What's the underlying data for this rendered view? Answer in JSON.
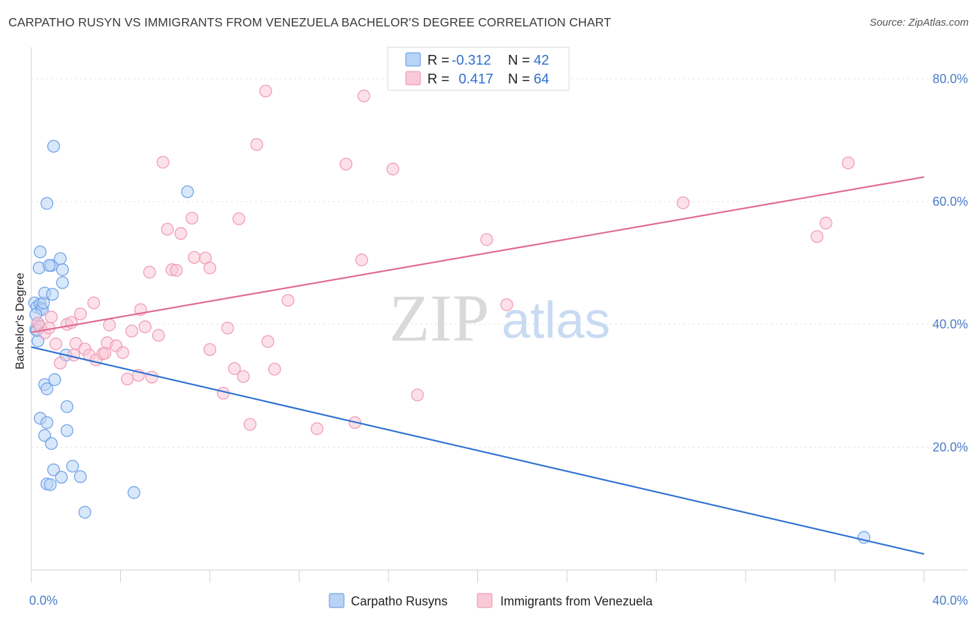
{
  "title": "CARPATHO RUSYN VS IMMIGRANTS FROM VENEZUELA BACHELOR'S DEGREE CORRELATION CHART",
  "source": "Source: ZipAtlas.com",
  "watermark": {
    "zip": "ZIP",
    "atlas": "atlas"
  },
  "chart_data": {
    "type": "scatter",
    "title": "CARPATHO RUSYN VS IMMIGRANTS FROM VENEZUELA BACHELOR'S DEGREE CORRELATION CHART",
    "xlabel": "",
    "ylabel": "Bachelor's Degree",
    "xlim": [
      0,
      40
    ],
    "ylim": [
      0,
      84
    ],
    "x_tick_labels": [
      {
        "value": 0,
        "label": "0.0%"
      },
      {
        "value": 40,
        "label": "40.0%"
      }
    ],
    "y_tick_labels": [
      {
        "value": 20,
        "label": "20.0%"
      },
      {
        "value": 40,
        "label": "40.0%"
      },
      {
        "value": 60,
        "label": "60.0%"
      },
      {
        "value": 80,
        "label": "80.0%"
      }
    ],
    "grid": true,
    "legend_position": "top-center",
    "series": [
      {
        "name": "Carpatho Rusyns",
        "color": "#6fa3e8",
        "fill": "#b9d3f5",
        "line_color": "#2e72d2",
        "r_label": "R =",
        "r_value": "-0.312",
        "n_label": "N =",
        "n_value": "42",
        "trend": {
          "x0": 0,
          "y0": 36.3,
          "x1": 40,
          "y1": 2.6
        },
        "points": [
          [
            0.15,
            43.5
          ],
          [
            0.25,
            42.8
          ],
          [
            0.2,
            39.2
          ],
          [
            0.3,
            40.2
          ],
          [
            0.3,
            37.3
          ],
          [
            0.35,
            49.2
          ],
          [
            0.4,
            51.8
          ],
          [
            0.4,
            43.3
          ],
          [
            0.45,
            42.6
          ],
          [
            0.5,
            42.4
          ],
          [
            0.55,
            43.5
          ],
          [
            0.6,
            45.1
          ],
          [
            0.7,
            59.7
          ],
          [
            0.9,
            49.6
          ],
          [
            0.95,
            44.9
          ],
          [
            1.0,
            69.0
          ],
          [
            1.3,
            50.7
          ],
          [
            1.4,
            48.9
          ],
          [
            1.4,
            46.8
          ],
          [
            0.2,
            41.6
          ],
          [
            0.25,
            39.0
          ],
          [
            0.6,
            30.2
          ],
          [
            0.7,
            29.5
          ],
          [
            1.05,
            31.0
          ],
          [
            1.55,
            35.0
          ],
          [
            1.6,
            26.6
          ],
          [
            0.4,
            24.7
          ],
          [
            0.7,
            24.0
          ],
          [
            1.6,
            22.7
          ],
          [
            0.6,
            21.9
          ],
          [
            0.9,
            20.6
          ],
          [
            1.0,
            16.3
          ],
          [
            1.85,
            16.9
          ],
          [
            1.35,
            15.1
          ],
          [
            2.2,
            15.2
          ],
          [
            0.7,
            14.0
          ],
          [
            0.85,
            13.9
          ],
          [
            4.6,
            12.6
          ],
          [
            2.4,
            9.4
          ],
          [
            7.0,
            61.6
          ],
          [
            37.3,
            5.3
          ],
          [
            0.8,
            49.6
          ]
        ]
      },
      {
        "name": "Immigrants from Venezuela",
        "color": "#f09cb6",
        "fill": "#f9c9d7",
        "line_color": "#e0698f",
        "r_label": "R =",
        "r_value": "0.417",
        "n_label": "N =",
        "n_value": "64",
        "trend": {
          "x0": 0,
          "y0": 38.7,
          "x1": 40,
          "y1": 64.0
        },
        "points": [
          [
            0.3,
            40.2
          ],
          [
            0.4,
            39.6
          ],
          [
            0.6,
            38.6
          ],
          [
            0.8,
            39.4
          ],
          [
            0.9,
            41.2
          ],
          [
            1.1,
            36.8
          ],
          [
            1.3,
            33.7
          ],
          [
            1.6,
            40.0
          ],
          [
            1.8,
            40.3
          ],
          [
            2.0,
            36.9
          ],
          [
            2.2,
            41.7
          ],
          [
            2.4,
            36.0
          ],
          [
            2.6,
            35.0
          ],
          [
            2.8,
            43.5
          ],
          [
            2.9,
            34.2
          ],
          [
            3.2,
            35.2
          ],
          [
            3.4,
            37.0
          ],
          [
            3.5,
            39.9
          ],
          [
            3.8,
            36.5
          ],
          [
            4.1,
            35.4
          ],
          [
            4.3,
            31.1
          ],
          [
            4.5,
            38.9
          ],
          [
            4.8,
            31.7
          ],
          [
            4.9,
            42.4
          ],
          [
            5.1,
            39.6
          ],
          [
            5.3,
            48.5
          ],
          [
            5.4,
            31.4
          ],
          [
            5.7,
            38.2
          ],
          [
            5.9,
            66.4
          ],
          [
            6.1,
            55.5
          ],
          [
            6.3,
            48.9
          ],
          [
            6.5,
            48.8
          ],
          [
            6.7,
            54.8
          ],
          [
            7.2,
            57.3
          ],
          [
            7.3,
            50.9
          ],
          [
            7.8,
            50.8
          ],
          [
            8.0,
            49.2
          ],
          [
            8.0,
            35.9
          ],
          [
            8.6,
            28.8
          ],
          [
            8.8,
            39.4
          ],
          [
            9.1,
            32.8
          ],
          [
            9.3,
            57.2
          ],
          [
            9.5,
            31.5
          ],
          [
            9.8,
            23.7
          ],
          [
            10.1,
            69.3
          ],
          [
            10.5,
            78.0
          ],
          [
            10.6,
            37.2
          ],
          [
            10.9,
            32.7
          ],
          [
            11.5,
            43.9
          ],
          [
            12.8,
            23.0
          ],
          [
            14.1,
            66.1
          ],
          [
            14.5,
            24.0
          ],
          [
            14.8,
            50.5
          ],
          [
            16.2,
            65.3
          ],
          [
            17.3,
            28.5
          ],
          [
            20.4,
            53.8
          ],
          [
            21.3,
            43.2
          ],
          [
            29.2,
            59.8
          ],
          [
            35.2,
            54.3
          ],
          [
            35.6,
            56.5
          ],
          [
            36.6,
            66.3
          ],
          [
            1.9,
            35.0
          ],
          [
            3.3,
            35.3
          ],
          [
            14.9,
            77.2
          ]
        ]
      }
    ]
  }
}
